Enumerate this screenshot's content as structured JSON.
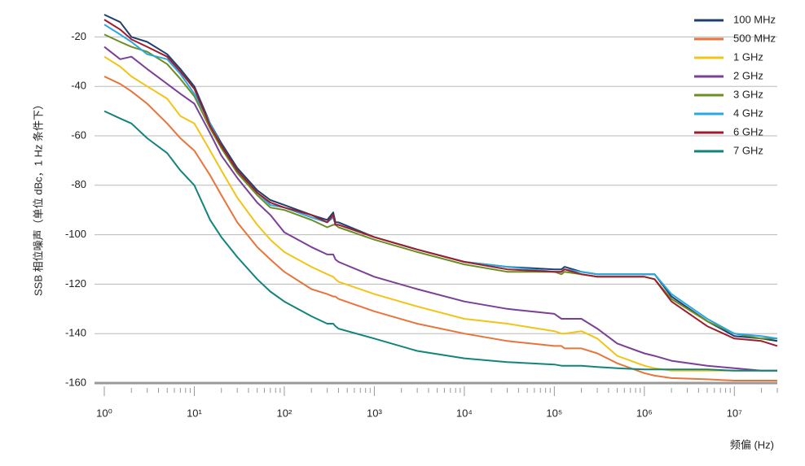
{
  "chart_data": {
    "type": "line",
    "ylabel": "SSB 相位噪声（单位 dBc，1 Hz 条件下）",
    "xlabel": "频偏 (Hz)",
    "x": [
      1,
      1.5,
      2,
      3,
      5,
      7,
      10,
      15,
      20,
      30,
      50,
      70,
      100,
      200,
      300,
      350,
      370,
      400,
      1000,
      3000,
      10000,
      30000,
      100000,
      120000,
      130000,
      200000,
      300000,
      500000,
      1000000,
      1300000,
      2000000,
      5000000,
      10000000,
      20000000,
      30000000
    ],
    "xlim": [
      1,
      30000000
    ],
    "xscale": "log",
    "xticks": [
      {
        "value": 1,
        "label": "10⁰"
      },
      {
        "value": 10,
        "label": "10¹"
      },
      {
        "value": 100,
        "label": "10²"
      },
      {
        "value": 1000,
        "label": "10³"
      },
      {
        "value": 10000,
        "label": "10⁴"
      },
      {
        "value": 100000,
        "label": "10⁵"
      },
      {
        "value": 1000000,
        "label": "10⁶"
      },
      {
        "value": 10000000,
        "label": "10⁷"
      }
    ],
    "ylim": [
      -160,
      -10
    ],
    "yticks": [
      -20,
      -40,
      -60,
      -80,
      -100,
      -120,
      -140,
      -160
    ],
    "grid": true,
    "legend": "top-right",
    "series": [
      {
        "name": "100 MHz",
        "color": "#1f3f73",
        "values": [
          -11,
          -14,
          -20,
          -22,
          -27,
          -33,
          -40,
          -55,
          -63,
          -73,
          -82,
          -86,
          -88,
          -92,
          -94,
          -91,
          -95,
          -95,
          -101,
          -106,
          -111,
          -113,
          -114,
          -114,
          -113,
          -115,
          -116,
          -116,
          -116,
          -116,
          -125,
          -135,
          -141,
          -142,
          -143
        ]
      },
      {
        "name": "500 MHz",
        "color": "#e8743b",
        "values": [
          -36,
          -39,
          -42,
          -47,
          -55,
          -61,
          -66,
          -76,
          -84,
          -95,
          -105,
          -110,
          -115,
          -122,
          -124,
          -125,
          -125,
          -126,
          -131,
          -136,
          -140,
          -143,
          -145,
          -145,
          -146,
          -146,
          -148,
          -152,
          -156,
          -157,
          -158,
          -158.5,
          -159,
          -159,
          -159
        ]
      },
      {
        "name": "1 GHz",
        "color": "#f2c417",
        "values": [
          -28,
          -32,
          -36,
          -40,
          -45,
          -52,
          -55,
          -66,
          -74,
          -85,
          -96,
          -102,
          -107,
          -113,
          -116,
          -117,
          -118,
          -119,
          -124,
          -129,
          -134,
          -136,
          -139,
          -140,
          -140,
          -139,
          -142,
          -149,
          -153,
          -154,
          -155,
          -155,
          -155,
          -155,
          -155
        ]
      },
      {
        "name": "2 GHz",
        "color": "#7b3f98",
        "values": [
          -24,
          -29,
          -28,
          -33,
          -39,
          -43,
          -47,
          -59,
          -68,
          -77,
          -87,
          -92,
          -99,
          -105,
          -108,
          -108,
          -110,
          -111,
          -117,
          -122,
          -127,
          -130,
          -132,
          -134,
          -134,
          -134,
          -138,
          -144,
          -148,
          -149,
          -151,
          -153,
          -154,
          -155,
          -155
        ]
      },
      {
        "name": "3 GHz",
        "color": "#6b8e23",
        "values": [
          -19,
          -22,
          -24,
          -26,
          -31,
          -37,
          -44,
          -57,
          -65,
          -75,
          -84,
          -89,
          -90,
          -94,
          -97,
          -96,
          -96,
          -97,
          -102,
          -107,
          -112,
          -115,
          -115,
          -116,
          -115,
          -116,
          -117,
          -117,
          -117,
          -118,
          -126,
          -135,
          -140,
          -142,
          -142
        ]
      },
      {
        "name": "4 GHz",
        "color": "#29a8df",
        "values": [
          -15,
          -19,
          -22,
          -27,
          -29,
          -35,
          -43,
          -55,
          -64,
          -74,
          -83,
          -88,
          -89,
          -93,
          -95,
          -93,
          -96,
          -96,
          -101,
          -106,
          -111,
          -113,
          -115,
          -115,
          -114,
          -115,
          -116,
          -116,
          -116,
          -116,
          -124,
          -134,
          -140,
          -141,
          -142
        ]
      },
      {
        "name": "6 GHz",
        "color": "#a01c2a",
        "values": [
          -13,
          -17,
          -21,
          -24,
          -28,
          -34,
          -41,
          -56,
          -64,
          -74,
          -83,
          -87,
          -89,
          -92,
          -95,
          -92,
          -96,
          -96,
          -101,
          -106,
          -111,
          -114,
          -115,
          -115,
          -114,
          -116,
          -117,
          -117,
          -117,
          -118,
          -127,
          -137,
          -142,
          -143,
          -145
        ]
      },
      {
        "name": "7 GHz",
        "color": "#12847a",
        "values": [
          -50,
          -53,
          -55,
          -61,
          -67,
          -74,
          -80,
          -94,
          -101,
          -109,
          -118,
          -123,
          -127,
          -133,
          -136,
          -136,
          -137,
          -138,
          -142,
          -147,
          -150,
          -151.5,
          -152.5,
          -153,
          -153,
          -153,
          -153.5,
          -154,
          -154.5,
          -154.5,
          -154.5,
          -154.5,
          -155,
          -155,
          -155
        ]
      }
    ]
  }
}
